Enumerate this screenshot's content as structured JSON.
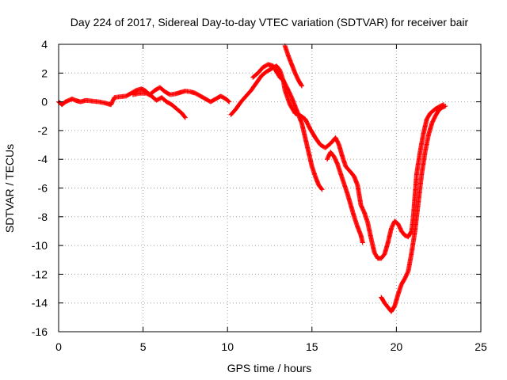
{
  "chart_data": {
    "type": "scatter",
    "title": "Day 224 of 2017, Sidereal Day-to-day VTEC variation (SDTVAR) for receiver bair",
    "xlabel": "GPS time / hours",
    "ylabel": "SDTVAR / TECUs",
    "xlim": [
      0,
      25
    ],
    "ylim": [
      -16,
      4
    ],
    "xticks": [
      "0",
      "5",
      "10",
      "15",
      "20",
      "25"
    ],
    "yticks": [
      "4",
      "2",
      "0",
      "-2",
      "-4",
      "-6",
      "-8",
      "-10",
      "-12",
      "-14",
      "-16"
    ],
    "grid": true,
    "legend": "none",
    "marker": "+",
    "color": "#ff0000",
    "series": [
      {
        "points": [
          [
            0.0,
            0.0
          ],
          [
            0.2,
            -0.2
          ],
          [
            0.4,
            0.0
          ],
          [
            0.6,
            0.1
          ],
          [
            0.8,
            0.2
          ],
          [
            1.0,
            0.1
          ],
          [
            1.3,
            0.0
          ],
          [
            1.6,
            0.1
          ],
          [
            2.0,
            0.05
          ],
          [
            2.4,
            0.0
          ],
          [
            2.8,
            -0.1
          ],
          [
            3.1,
            -0.2
          ],
          [
            3.3,
            0.3
          ],
          [
            3.6,
            0.35
          ],
          [
            4.0,
            0.4
          ],
          [
            4.3,
            0.6
          ],
          [
            4.6,
            0.8
          ],
          [
            4.9,
            0.9
          ],
          [
            5.1,
            0.8
          ],
          [
            5.4,
            0.5
          ],
          [
            5.7,
            0.8
          ],
          [
            6.0,
            1.0
          ],
          [
            6.3,
            0.7
          ],
          [
            6.6,
            0.5
          ],
          [
            6.9,
            0.55
          ],
          [
            7.2,
            0.65
          ],
          [
            7.5,
            0.75
          ],
          [
            7.8,
            0.7
          ],
          [
            8.1,
            0.6
          ],
          [
            8.4,
            0.4
          ],
          [
            8.7,
            0.2
          ],
          [
            9.0,
            0.0
          ],
          [
            9.3,
            0.2
          ],
          [
            9.6,
            0.4
          ],
          [
            9.9,
            0.2
          ],
          [
            10.1,
            0.0
          ]
        ]
      },
      {
        "points": [
          [
            4.4,
            0.5
          ],
          [
            4.8,
            0.6
          ],
          [
            5.2,
            0.6
          ],
          [
            5.5,
            0.4
          ],
          [
            5.8,
            0.1
          ],
          [
            6.1,
            0.3
          ],
          [
            6.4,
            0.0
          ],
          [
            6.7,
            -0.2
          ],
          [
            7.0,
            -0.5
          ],
          [
            7.3,
            -0.8
          ],
          [
            7.5,
            -1.1
          ]
        ]
      },
      {
        "points": [
          [
            10.2,
            -0.9
          ],
          [
            10.5,
            -0.5
          ],
          [
            10.8,
            0.0
          ],
          [
            11.1,
            0.4
          ],
          [
            11.4,
            0.8
          ],
          [
            11.7,
            1.3
          ],
          [
            12.0,
            1.8
          ],
          [
            12.3,
            2.1
          ],
          [
            12.6,
            2.3
          ],
          [
            12.9,
            2.5
          ],
          [
            13.1,
            2.2
          ],
          [
            13.3,
            1.5
          ],
          [
            13.6,
            0.8
          ],
          [
            13.8,
            0.3
          ],
          [
            14.0,
            -0.3
          ],
          [
            14.2,
            -0.9
          ],
          [
            14.4,
            -1.5
          ],
          [
            14.6,
            -2.5
          ],
          [
            14.8,
            -3.5
          ],
          [
            15.0,
            -4.5
          ],
          [
            15.2,
            -5.2
          ],
          [
            15.4,
            -5.8
          ],
          [
            15.6,
            -6.1
          ]
        ]
      },
      {
        "points": [
          [
            11.5,
            1.7
          ],
          [
            11.8,
            2.0
          ],
          [
            12.1,
            2.4
          ],
          [
            12.4,
            2.6
          ],
          [
            12.7,
            2.5
          ],
          [
            12.9,
            2.1
          ],
          [
            13.1,
            1.7
          ],
          [
            13.3,
            1.5
          ],
          [
            13.4,
            0.8
          ],
          [
            13.7,
            -0.2
          ],
          [
            14.0,
            -0.8
          ],
          [
            14.3,
            -0.95
          ],
          [
            14.6,
            -1.2
          ],
          [
            14.9,
            -1.9
          ],
          [
            15.2,
            -2.5
          ],
          [
            15.5,
            -3.0
          ],
          [
            15.8,
            -3.2
          ],
          [
            16.1,
            -2.9
          ],
          [
            16.4,
            -2.5
          ],
          [
            16.6,
            -3.0
          ],
          [
            16.8,
            -3.8
          ],
          [
            17.0,
            -4.5
          ],
          [
            17.3,
            -4.9
          ],
          [
            17.5,
            -5.2
          ],
          [
            17.7,
            -5.8
          ],
          [
            17.8,
            -6.5
          ],
          [
            17.9,
            -7.2
          ],
          [
            18.1,
            -7.7
          ],
          [
            18.3,
            -8.4
          ],
          [
            18.5,
            -9.5
          ],
          [
            18.7,
            -10.5
          ],
          [
            18.9,
            -10.9
          ],
          [
            19.1,
            -10.9
          ],
          [
            19.3,
            -10.6
          ],
          [
            19.5,
            -9.8
          ],
          [
            19.7,
            -8.8
          ],
          [
            19.9,
            -8.3
          ],
          [
            20.1,
            -8.5
          ],
          [
            20.3,
            -9.0
          ],
          [
            20.5,
            -9.3
          ],
          [
            20.7,
            -9.4
          ],
          [
            20.9,
            -9.0
          ],
          [
            21.0,
            -8.0
          ],
          [
            21.1,
            -6.5
          ],
          [
            21.2,
            -5.0
          ],
          [
            21.4,
            -3.5
          ],
          [
            21.6,
            -2.2
          ],
          [
            21.8,
            -1.2
          ],
          [
            22.0,
            -0.8
          ],
          [
            22.3,
            -0.5
          ],
          [
            22.6,
            -0.3
          ],
          [
            22.8,
            -0.2
          ]
        ]
      },
      {
        "points": [
          [
            13.4,
            3.9
          ],
          [
            13.6,
            3.2
          ],
          [
            13.8,
            2.6
          ],
          [
            14.0,
            2.0
          ],
          [
            14.2,
            1.5
          ],
          [
            14.4,
            1.1
          ]
        ]
      },
      {
        "points": [
          [
            15.9,
            -4.0
          ],
          [
            16.1,
            -3.5
          ],
          [
            16.3,
            -3.8
          ],
          [
            16.5,
            -4.3
          ],
          [
            16.7,
            -5.0
          ],
          [
            16.9,
            -5.7
          ],
          [
            17.1,
            -6.4
          ],
          [
            17.3,
            -7.2
          ],
          [
            17.5,
            -8.0
          ],
          [
            17.7,
            -8.7
          ],
          [
            17.9,
            -9.3
          ],
          [
            18.0,
            -9.8
          ]
        ]
      },
      {
        "points": [
          [
            19.1,
            -13.6
          ],
          [
            19.3,
            -14.0
          ],
          [
            19.5,
            -14.3
          ],
          [
            19.7,
            -14.6
          ],
          [
            19.9,
            -14.2
          ],
          [
            20.1,
            -13.4
          ],
          [
            20.3,
            -12.7
          ],
          [
            20.5,
            -12.3
          ],
          [
            20.7,
            -11.8
          ],
          [
            20.9,
            -10.5
          ],
          [
            21.1,
            -9.0
          ],
          [
            21.3,
            -7.0
          ],
          [
            21.5,
            -5.0
          ],
          [
            21.7,
            -3.5
          ],
          [
            21.9,
            -2.3
          ],
          [
            22.1,
            -1.5
          ],
          [
            22.3,
            -1.0
          ],
          [
            22.5,
            -0.6
          ],
          [
            22.7,
            -0.4
          ],
          [
            22.9,
            -0.3
          ]
        ]
      }
    ]
  }
}
